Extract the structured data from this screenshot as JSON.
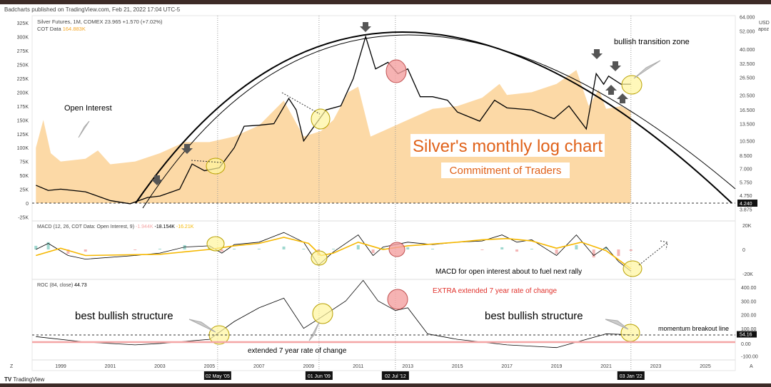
{
  "header": {
    "published": "Badcharts published on TradingView.com, Feb 21, 2022 17:04 UTC-5",
    "symbol": "Silver Futures, 1M, COMEX",
    "price": "23.965",
    "change": "+1.570 (+7.02%)",
    "cot_label": "COT Data",
    "cot_value": "164.883K"
  },
  "macd_header": {
    "label": "MACD (12, 26, COT Data: Open Interest, 9)",
    "hist": "-1.944K",
    "macd": "-18.154K",
    "signal": "-16.21K"
  },
  "roc_header": {
    "label": "ROC (84, close)",
    "value": "44.73"
  },
  "currency": "USD",
  "unit": "apoz",
  "annotations": {
    "title": "Silver's monthly log chart",
    "subtitle": "Commitment of Traders",
    "open_interest": "Open Interest",
    "transition": "bullish transition zone",
    "macd_note": "MACD for open interest about to fuel next rally",
    "extra_roc": "EXTRA extended 7 year rate of change",
    "best1": "best bullish structure",
    "best2": "best bullish structure",
    "extended": "extended 7 year rate of change",
    "breakout": "momentum breakout line"
  },
  "footer": {
    "brand": "TradingView",
    "z": "Z",
    "a": "A"
  },
  "colors": {
    "oi_fill": "#fcd9a6",
    "macd_signal": "#f5b700",
    "title": "#e0621a",
    "roc_zero": "#f4a6a6",
    "circle": "#fff59d"
  },
  "chart_data": {
    "type": "line",
    "title": "Silver Futures, 1M, COMEX",
    "x_ticks": [
      "1999",
      "2001",
      "2003",
      "2005",
      "2007",
      "2009",
      "2011",
      "2013",
      "2015",
      "2017",
      "2019",
      "2021",
      "2023",
      "2025"
    ],
    "x_highlight": [
      "02 May '05",
      "01 Jun '09",
      "02 Jul '12",
      "03 Jan '22"
    ],
    "price_axis": {
      "scale": "log",
      "ticks": [
        "64.000",
        "52.000",
        "40.000",
        "32.500",
        "26.500",
        "20.500",
        "16.500",
        "13.500",
        "10.500",
        "8.500",
        "7.000",
        "5.750",
        "4.750",
        "3.875"
      ],
      "marker": "4.240"
    },
    "oi_axis": {
      "ticks": [
        "325K",
        "300K",
        "275K",
        "250K",
        "225K",
        "200K",
        "175K",
        "150K",
        "125K",
        "100K",
        "75K",
        "50K",
        "25K",
        "0",
        "-25K"
      ]
    },
    "macd_axis": {
      "ticks": [
        "20K",
        "0",
        "-20K"
      ]
    },
    "roc_axis": {
      "ticks": [
        "400.00",
        "300.00",
        "200.00",
        "100.00",
        "0.00",
        "-100.00"
      ],
      "marker": "54.16"
    },
    "price": [
      [
        1998,
        5.5
      ],
      [
        1998.5,
        5.1
      ],
      [
        1999,
        5.2
      ],
      [
        2000,
        5.0
      ],
      [
        2001,
        4.4
      ],
      [
        2001.8,
        4.2
      ],
      [
        2002.5,
        4.6
      ],
      [
        2003,
        4.7
      ],
      [
        2003.8,
        5.2
      ],
      [
        2004.3,
        7.5
      ],
      [
        2004.8,
        6.8
      ],
      [
        2005.4,
        7.1
      ],
      [
        2006,
        9.5
      ],
      [
        2006.4,
        13
      ],
      [
        2007,
        13.2
      ],
      [
        2007.6,
        13.5
      ],
      [
        2008.2,
        19.5
      ],
      [
        2008.5,
        16.5
      ],
      [
        2008.8,
        10.5
      ],
      [
        2009.3,
        13.5
      ],
      [
        2009.7,
        16.5
      ],
      [
        2010.3,
        17.5
      ],
      [
        2010.8,
        26
      ],
      [
        2011.3,
        48
      ],
      [
        2011.7,
        30
      ],
      [
        2012.2,
        33
      ],
      [
        2012.6,
        28
      ],
      [
        2013,
        30
      ],
      [
        2013.5,
        20
      ],
      [
        2014,
        20
      ],
      [
        2014.6,
        19
      ],
      [
        2015,
        16
      ],
      [
        2015.9,
        14
      ],
      [
        2016.5,
        19
      ],
      [
        2017,
        17
      ],
      [
        2018,
        16.5
      ],
      [
        2018.9,
        14.5
      ],
      [
        2019.5,
        17.5
      ],
      [
        2020.2,
        12.5
      ],
      [
        2020.6,
        28
      ],
      [
        2020.9,
        24
      ],
      [
        2021.1,
        27
      ],
      [
        2021.6,
        24
      ],
      [
        2022,
        24
      ]
    ],
    "open_interest": [
      [
        1998,
        100
      ],
      [
        1998.3,
        150
      ],
      [
        1998.6,
        90
      ],
      [
        1999,
        75
      ],
      [
        2000,
        80
      ],
      [
        2000.5,
        95
      ],
      [
        2001,
        70
      ],
      [
        2002,
        75
      ],
      [
        2003,
        90
      ],
      [
        2004,
        110
      ],
      [
        2005,
        110
      ],
      [
        2006,
        120
      ],
      [
        2007,
        140
      ],
      [
        2008,
        185
      ],
      [
        2008.8,
        120
      ],
      [
        2009.5,
        130
      ],
      [
        2010,
        150
      ],
      [
        2010.6,
        200
      ],
      [
        2011,
        210
      ],
      [
        2011.5,
        120
      ],
      [
        2012,
        130
      ],
      [
        2013,
        150
      ],
      [
        2014,
        170
      ],
      [
        2015,
        175
      ],
      [
        2016,
        190
      ],
      [
        2016.7,
        215
      ],
      [
        2017,
        195
      ],
      [
        2018,
        200
      ],
      [
        2019,
        215
      ],
      [
        2019.8,
        240
      ],
      [
        2020.3,
        175
      ],
      [
        2020.7,
        205
      ],
      [
        2021,
        170
      ],
      [
        2021.6,
        175
      ],
      [
        2022,
        165
      ]
    ],
    "macd": [
      [
        1998,
        0
      ],
      [
        1998.5,
        5
      ],
      [
        1999.3,
        -5
      ],
      [
        2000,
        -8
      ],
      [
        2002,
        -5
      ],
      [
        2003,
        -3
      ],
      [
        2004,
        2
      ],
      [
        2005,
        3
      ],
      [
        2005.5,
        -3
      ],
      [
        2006,
        4
      ],
      [
        2007,
        6
      ],
      [
        2008,
        14
      ],
      [
        2008.8,
        6
      ],
      [
        2009.4,
        -13
      ],
      [
        2010,
        -2
      ],
      [
        2011,
        12
      ],
      [
        2011.6,
        -5
      ],
      [
        2012,
        2
      ],
      [
        2013,
        6
      ],
      [
        2014,
        4
      ],
      [
        2015,
        6
      ],
      [
        2016,
        7
      ],
      [
        2016.8,
        12
      ],
      [
        2017.4,
        6
      ],
      [
        2018,
        8
      ],
      [
        2019,
        -5
      ],
      [
        2019.8,
        12
      ],
      [
        2020.5,
        -5
      ],
      [
        2021,
        2
      ],
      [
        2021.5,
        -10
      ],
      [
        2022,
        -18
      ]
    ],
    "signal": [
      [
        1998,
        -5
      ],
      [
        1999,
        1
      ],
      [
        2000,
        -5
      ],
      [
        2003,
        -4
      ],
      [
        2005,
        0
      ],
      [
        2006,
        3
      ],
      [
        2007,
        5
      ],
      [
        2008,
        10
      ],
      [
        2009,
        5
      ],
      [
        2009.5,
        -5
      ],
      [
        2010,
        -3
      ],
      [
        2011,
        6
      ],
      [
        2012,
        0
      ],
      [
        2013,
        3
      ],
      [
        2015,
        6
      ],
      [
        2016,
        8
      ],
      [
        2017,
        9
      ],
      [
        2018,
        7
      ],
      [
        2019,
        1
      ],
      [
        2020,
        6
      ],
      [
        2021,
        -1
      ],
      [
        2022,
        -16
      ]
    ],
    "roc": [
      [
        1998,
        40
      ],
      [
        2000,
        0
      ],
      [
        2002,
        -20
      ],
      [
        2003,
        -10
      ],
      [
        2005,
        20
      ],
      [
        2006,
        150
      ],
      [
        2007,
        250
      ],
      [
        2008,
        320
      ],
      [
        2008.8,
        100
      ],
      [
        2009.5,
        180
      ],
      [
        2010.5,
        300
      ],
      [
        2011.2,
        450
      ],
      [
        2011.8,
        300
      ],
      [
        2012.5,
        230
      ],
      [
        2013,
        250
      ],
      [
        2013.8,
        60
      ],
      [
        2015,
        20
      ],
      [
        2017,
        -20
      ],
      [
        2019,
        -40
      ],
      [
        2020,
        10
      ],
      [
        2021,
        60
      ],
      [
        2022,
        54
      ]
    ]
  }
}
